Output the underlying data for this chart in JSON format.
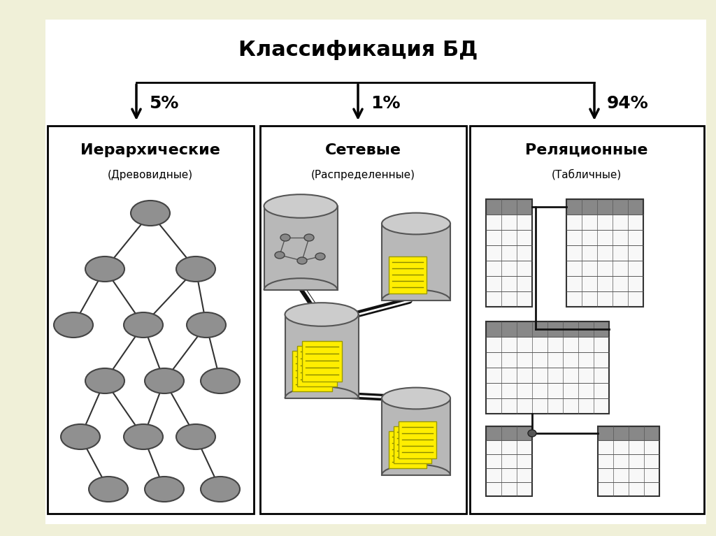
{
  "title": "Классификация БД",
  "bg_outer": "#f0f0d8",
  "bg_slide": "#ffffff",
  "bg_panel": "#ffffff",
  "panel_border": "#000000",
  "text_color": "#000000",
  "node_color": "#909090",
  "node_edge": "#444444",
  "panel1_title": "Иерархические",
  "panel1_sub": "(Древовидные)",
  "panel1_pct": "5%",
  "panel2_title": "Сетевые",
  "panel2_sub": "(Распределенные)",
  "panel2_pct": "1%",
  "panel3_title": "Реляционные",
  "panel3_sub": "(Табличные)",
  "panel3_pct": "94%",
  "arrow_color": "#000000",
  "cylinder_color": "#b0b0b0",
  "yellow_color": "#ffee00",
  "header_gray": "#888888",
  "table_bg": "#f8f8f8"
}
